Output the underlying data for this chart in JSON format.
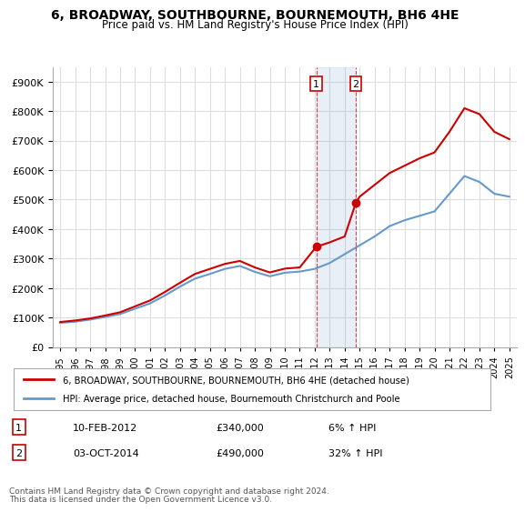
{
  "title": "6, BROADWAY, SOUTHBOURNE, BOURNEMOUTH, BH6 4HE",
  "subtitle": "Price paid vs. HM Land Registry's House Price Index (HPI)",
  "legend_line1": "6, BROADWAY, SOUTHBOURNE, BOURNEMOUTH, BH6 4HE (detached house)",
  "legend_line2": "HPI: Average price, detached house, Bournemouth Christchurch and Poole",
  "footer1": "Contains HM Land Registry data © Crown copyright and database right 2024.",
  "footer2": "This data is licensed under the Open Government Licence v3.0.",
  "sale1_label": "1",
  "sale1_date": "10-FEB-2012",
  "sale1_price": "£340,000",
  "sale1_hpi": "6% ↑ HPI",
  "sale2_label": "2",
  "sale2_date": "03-OCT-2014",
  "sale2_price": "£490,000",
  "sale2_hpi": "32% ↑ HPI",
  "red_color": "#cc0000",
  "blue_color": "#6699cc",
  "background_color": "#ffffff",
  "grid_color": "#dddddd",
  "sale1_year": 2012.1,
  "sale1_value": 340000,
  "sale2_year": 2014.75,
  "sale2_value": 490000,
  "ylim": [
    0,
    950000
  ],
  "xlim_start": 1994.5,
  "xlim_end": 2025.5,
  "hpi_years": [
    1995,
    1996,
    1997,
    1998,
    1999,
    2000,
    2001,
    2002,
    2003,
    2004,
    2005,
    2006,
    2007,
    2008,
    2009,
    2010,
    2011,
    2012,
    2013,
    2014,
    2015,
    2016,
    2017,
    2018,
    2019,
    2020,
    2021,
    2022,
    2023,
    2024,
    2025
  ],
  "hpi_values": [
    82000,
    86000,
    93000,
    102000,
    112000,
    130000,
    148000,
    175000,
    205000,
    232000,
    248000,
    265000,
    275000,
    255000,
    240000,
    252000,
    256000,
    265000,
    285000,
    315000,
    345000,
    375000,
    410000,
    430000,
    445000,
    460000,
    520000,
    580000,
    560000,
    520000,
    510000
  ],
  "red_years": [
    1995,
    1996,
    1997,
    1998,
    1999,
    2000,
    2001,
    2002,
    2003,
    2004,
    2005,
    2006,
    2007,
    2008,
    2009,
    2010,
    2011,
    2012.1,
    2013,
    2014,
    2014.75,
    2015,
    2016,
    2017,
    2018,
    2019,
    2020,
    2021,
    2022,
    2023,
    2024,
    2025
  ],
  "red_values": [
    85000,
    90000,
    97000,
    107000,
    118000,
    138000,
    158000,
    187000,
    218000,
    248000,
    265000,
    282000,
    292000,
    270000,
    253000,
    266000,
    270000,
    340000,
    355000,
    375000,
    490000,
    510000,
    550000,
    590000,
    615000,
    640000,
    660000,
    730000,
    810000,
    790000,
    730000,
    705000
  ]
}
